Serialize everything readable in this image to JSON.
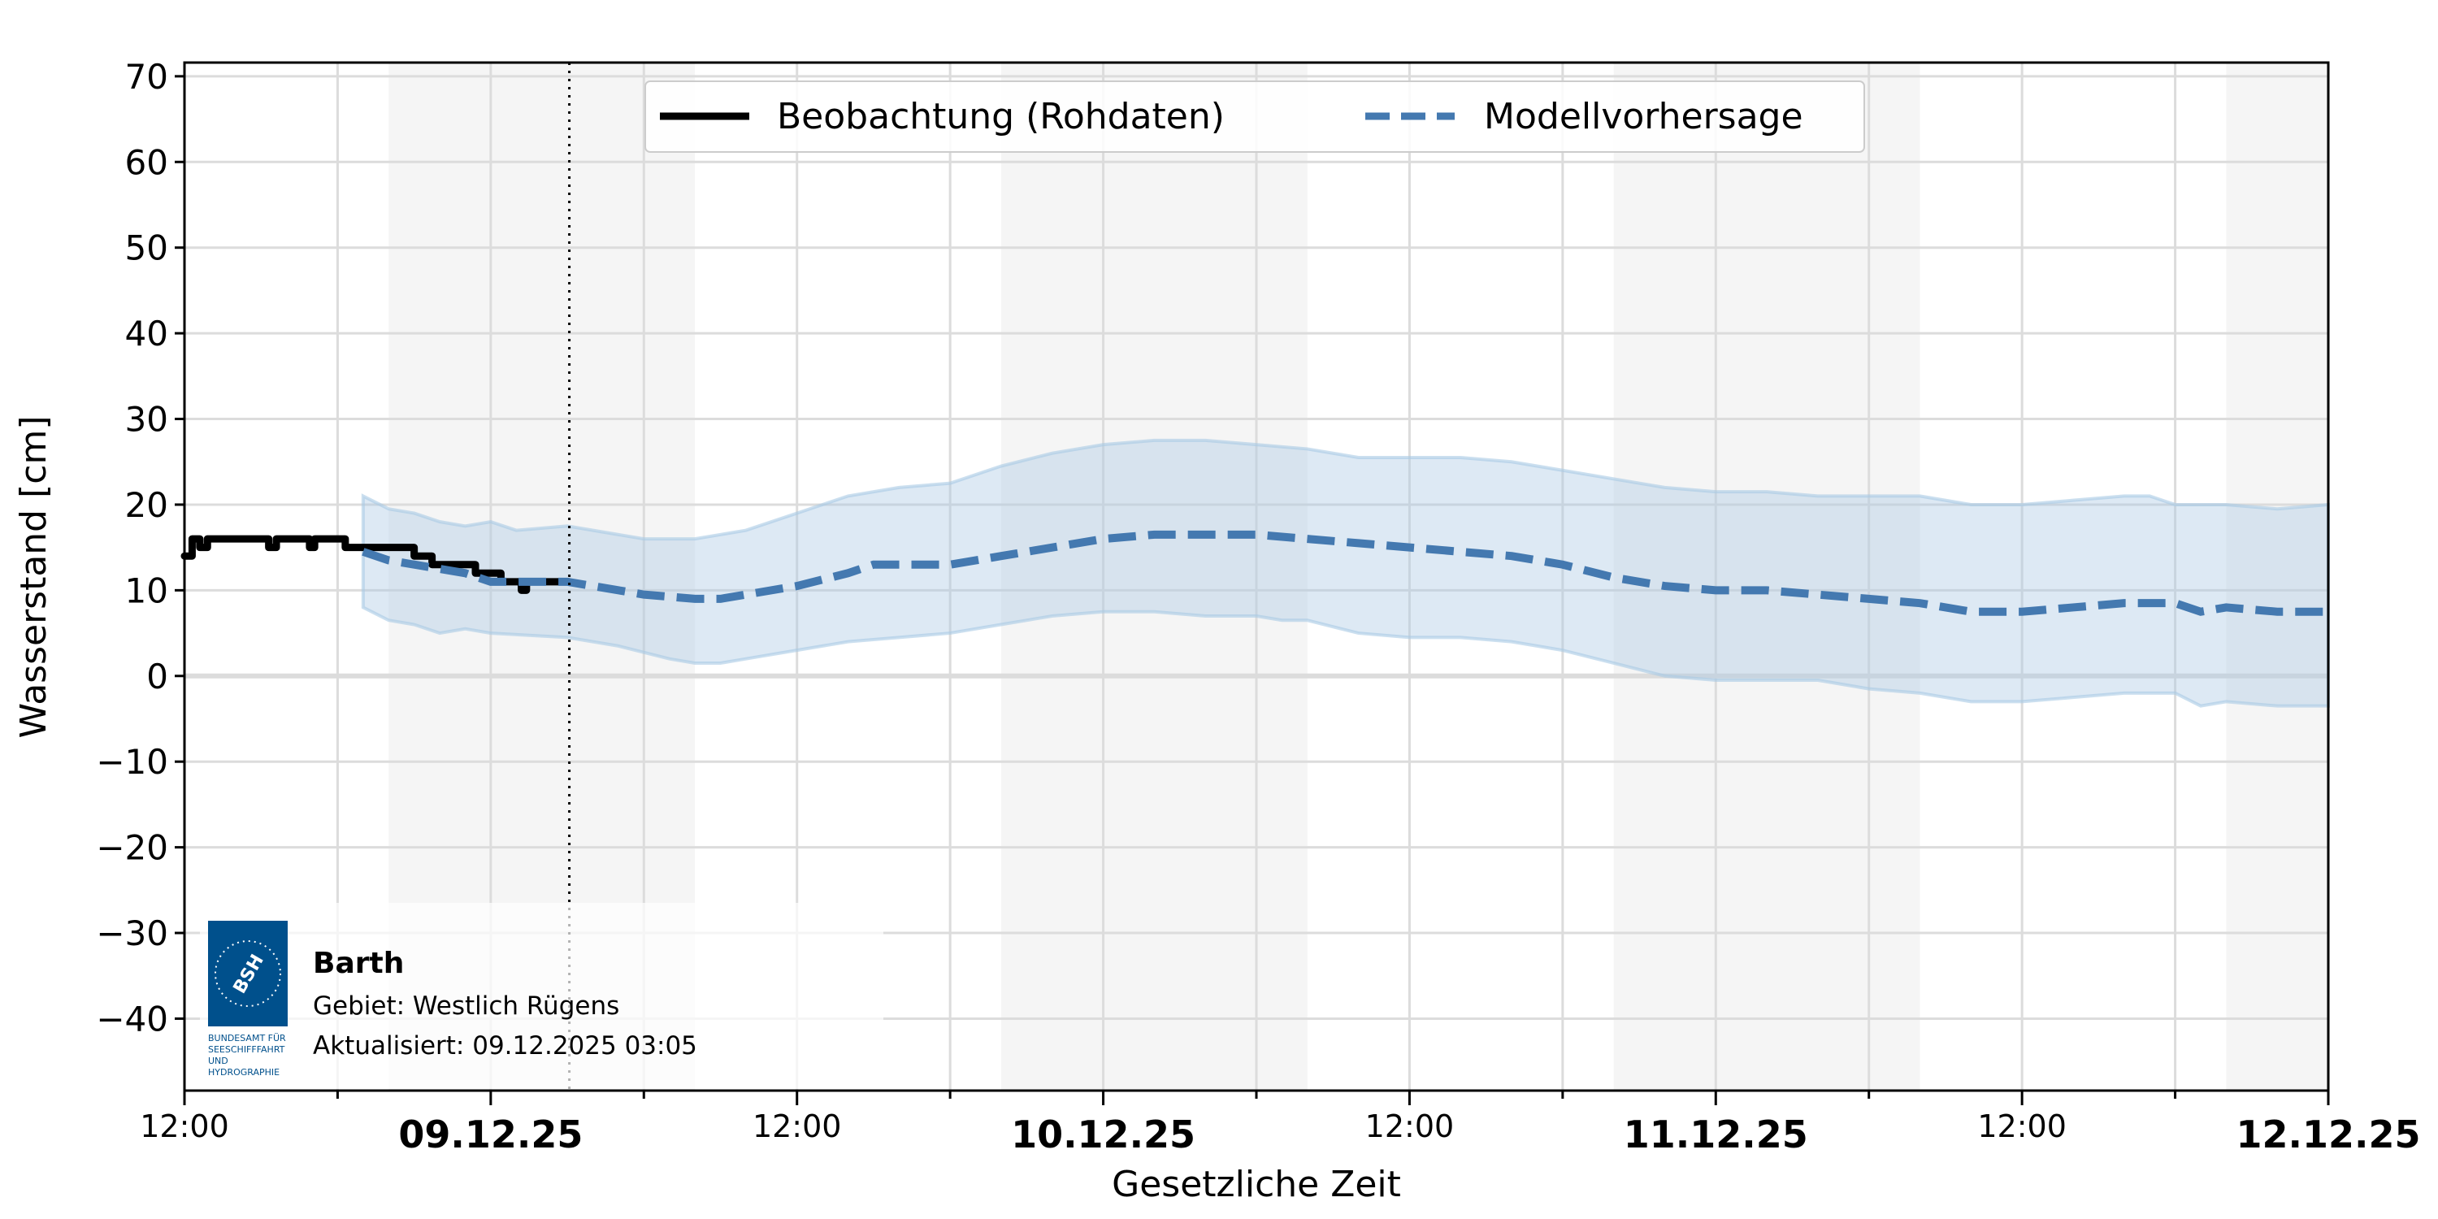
{
  "chart_data": {
    "type": "line",
    "xlabel": "Gesetzliche Zeit",
    "ylabel": "Wasserstand [cm]",
    "x_unit": "hours since 08.12.25 12:00",
    "xlim": [
      0,
      84
    ],
    "ylim": [
      -48.4,
      71.6
    ],
    "yticks": [
      -40,
      -30,
      -20,
      -10,
      0,
      10,
      20,
      30,
      40,
      50,
      60,
      70
    ],
    "ytick_labels": [
      "−40",
      "−30",
      "−20",
      "−10",
      "0",
      "10",
      "20",
      "30",
      "40",
      "50",
      "60",
      "70"
    ],
    "xticks_major": [
      {
        "x": 0,
        "label": "12:00",
        "bold": false
      },
      {
        "x": 12,
        "label": "09.12.25",
        "bold": true
      },
      {
        "x": 24,
        "label": "12:00",
        "bold": false
      },
      {
        "x": 36,
        "label": "10.12.25",
        "bold": true
      },
      {
        "x": 48,
        "label": "12:00",
        "bold": false
      },
      {
        "x": 60,
        "label": "11.12.25",
        "bold": true
      },
      {
        "x": 72,
        "label": "12:00",
        "bold": false
      },
      {
        "x": 84,
        "label": "12.12.25",
        "bold": true
      }
    ],
    "grid": true,
    "night_shading": [
      [
        8,
        20
      ],
      [
        32,
        44
      ],
      [
        56,
        68
      ],
      [
        80,
        84
      ]
    ],
    "now_marker": 15.08,
    "legend_position": "top-center",
    "series": [
      {
        "name": "Beobachtung (Rohdaten)",
        "color": "#000000",
        "style": "solid",
        "step": true,
        "points": [
          [
            0,
            14
          ],
          [
            0.3,
            16
          ],
          [
            0.6,
            15
          ],
          [
            0.9,
            16
          ],
          [
            3.2,
            16
          ],
          [
            3.3,
            15
          ],
          [
            3.6,
            16
          ],
          [
            4.8,
            16
          ],
          [
            4.9,
            15
          ],
          [
            5.1,
            16
          ],
          [
            6.2,
            16
          ],
          [
            6.3,
            15
          ],
          [
            8.8,
            15
          ],
          [
            9,
            14
          ],
          [
            9.6,
            14
          ],
          [
            9.7,
            13
          ],
          [
            11.3,
            13
          ],
          [
            11.4,
            12
          ],
          [
            12.3,
            12
          ],
          [
            12.4,
            11
          ],
          [
            13,
            11
          ],
          [
            13.2,
            10
          ],
          [
            13.4,
            11
          ],
          [
            15.08,
            11
          ]
        ]
      },
      {
        "name": "Modellvorhersage",
        "color": "#4479b0",
        "style": "dashed",
        "points": [
          [
            7,
            14.5
          ],
          [
            8,
            13.5
          ],
          [
            9,
            13
          ],
          [
            10,
            12.5
          ],
          [
            11,
            12
          ],
          [
            12,
            11
          ],
          [
            15,
            11
          ],
          [
            16,
            10.5
          ],
          [
            18,
            9.5
          ],
          [
            20,
            9
          ],
          [
            21,
            9
          ],
          [
            22,
            9.5
          ],
          [
            24,
            10.5
          ],
          [
            26,
            12
          ],
          [
            27,
            13
          ],
          [
            30,
            13
          ],
          [
            32,
            14
          ],
          [
            34,
            15
          ],
          [
            36,
            16
          ],
          [
            38,
            16.5
          ],
          [
            40,
            16.5
          ],
          [
            42,
            16.5
          ],
          [
            44,
            16
          ],
          [
            46,
            15.5
          ],
          [
            48,
            15
          ],
          [
            50,
            14.5
          ],
          [
            52,
            14
          ],
          [
            54,
            13
          ],
          [
            56,
            11.5
          ],
          [
            58,
            10.5
          ],
          [
            60,
            10
          ],
          [
            62,
            10
          ],
          [
            64,
            9.5
          ],
          [
            66,
            9
          ],
          [
            68,
            8.5
          ],
          [
            70,
            7.5
          ],
          [
            72,
            7.5
          ],
          [
            74,
            8
          ],
          [
            76,
            8.5
          ],
          [
            78,
            8.5
          ],
          [
            79,
            7.5
          ],
          [
            80,
            8
          ],
          [
            82,
            7.5
          ],
          [
            84,
            7.5
          ]
        ]
      }
    ],
    "band": {
      "color": "#a9c9e4",
      "upper": [
        [
          7,
          21
        ],
        [
          8,
          19.5
        ],
        [
          9,
          19
        ],
        [
          10,
          18
        ],
        [
          11,
          17.5
        ],
        [
          12,
          18
        ],
        [
          13,
          17
        ],
        [
          15,
          17.5
        ],
        [
          18,
          16
        ],
        [
          20,
          16
        ],
        [
          22,
          17
        ],
        [
          24,
          19
        ],
        [
          26,
          21
        ],
        [
          28,
          22
        ],
        [
          30,
          22.5
        ],
        [
          32,
          24.5
        ],
        [
          34,
          26
        ],
        [
          36,
          27
        ],
        [
          38,
          27.5
        ],
        [
          40,
          27.5
        ],
        [
          42,
          27
        ],
        [
          44,
          26.5
        ],
        [
          46,
          25.5
        ],
        [
          48,
          25.5
        ],
        [
          50,
          25.5
        ],
        [
          52,
          25
        ],
        [
          54,
          24
        ],
        [
          56,
          23
        ],
        [
          58,
          22
        ],
        [
          60,
          21.5
        ],
        [
          62,
          21.5
        ],
        [
          64,
          21
        ],
        [
          66,
          21
        ],
        [
          68,
          21
        ],
        [
          70,
          20
        ],
        [
          72,
          20
        ],
        [
          74,
          20.5
        ],
        [
          76,
          21
        ],
        [
          77,
          21
        ],
        [
          78,
          20
        ],
        [
          80,
          20
        ],
        [
          82,
          19.5
        ],
        [
          84,
          20
        ]
      ],
      "lower": [
        [
          7,
          8
        ],
        [
          8,
          6.5
        ],
        [
          9,
          6
        ],
        [
          10,
          5
        ],
        [
          11,
          5.5
        ],
        [
          12,
          5
        ],
        [
          15,
          4.5
        ],
        [
          17,
          3.5
        ],
        [
          19,
          2
        ],
        [
          20,
          1.5
        ],
        [
          21,
          1.5
        ],
        [
          22,
          2
        ],
        [
          24,
          3
        ],
        [
          26,
          4
        ],
        [
          28,
          4.5
        ],
        [
          30,
          5
        ],
        [
          32,
          6
        ],
        [
          34,
          7
        ],
        [
          36,
          7.5
        ],
        [
          38,
          7.5
        ],
        [
          40,
          7
        ],
        [
          42,
          7
        ],
        [
          43,
          6.5
        ],
        [
          44,
          6.5
        ],
        [
          46,
          5
        ],
        [
          48,
          4.5
        ],
        [
          50,
          4.5
        ],
        [
          52,
          4
        ],
        [
          54,
          3
        ],
        [
          56,
          1.5
        ],
        [
          58,
          0
        ],
        [
          60,
          -0.5
        ],
        [
          62,
          -0.5
        ],
        [
          64,
          -0.5
        ],
        [
          66,
          -1.5
        ],
        [
          68,
          -2
        ],
        [
          70,
          -3
        ],
        [
          72,
          -3
        ],
        [
          74,
          -2.5
        ],
        [
          76,
          -2
        ],
        [
          78,
          -2
        ],
        [
          79,
          -3.5
        ],
        [
          80,
          -3
        ],
        [
          82,
          -3.5
        ],
        [
          84,
          -3.5
        ]
      ]
    }
  },
  "info": {
    "station": "Barth",
    "area": "Gebiet: Westlich Rügens",
    "updated": "Aktualisiert: 09.12.2025 03:05",
    "logo_text": "BSH",
    "logo_caption": [
      "BUNDESAMT FÜR",
      "SEESCHIFFFAHRT",
      "UND",
      "HYDROGRAPHIE"
    ],
    "logo_color": "#00508c"
  }
}
